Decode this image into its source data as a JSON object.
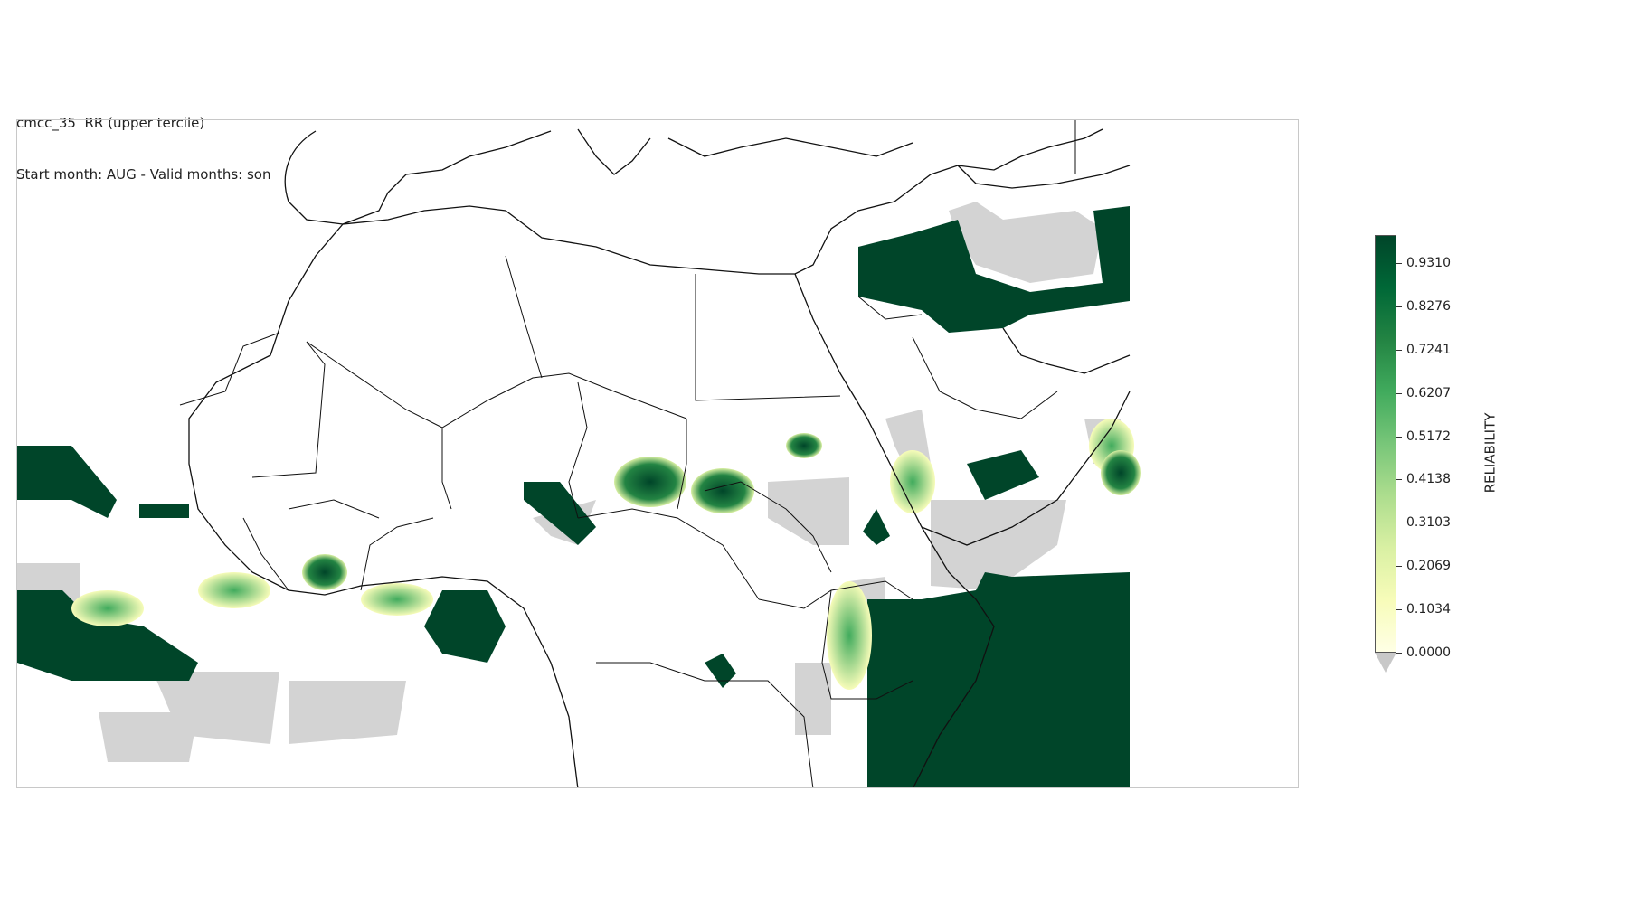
{
  "title": {
    "line1": "cmcc_35  RR (upper tercile)",
    "line2": "Start month: AUG - Valid months: son"
  },
  "colorbar": {
    "label": "RELIABILITY",
    "ticks": [
      "0.0000",
      "0.1034",
      "0.2069",
      "0.3103",
      "0.4138",
      "0.5172",
      "0.6207",
      "0.7241",
      "0.8276",
      "0.9310"
    ],
    "colors": [
      "#ffffe5",
      "#f7fcb9",
      "#d9f0a3",
      "#addd8e",
      "#78c679",
      "#41ab5d",
      "#238443",
      "#006837",
      "#004529"
    ],
    "under_color": "#c8c8c8"
  },
  "map": {
    "region": "North Africa and Middle East",
    "fill_colors": {
      "dark": "#004529",
      "mid": "#41ab5d",
      "light": "#addd8e",
      "pale": "#f0f9c4",
      "gray": "#d3d3d3"
    }
  }
}
